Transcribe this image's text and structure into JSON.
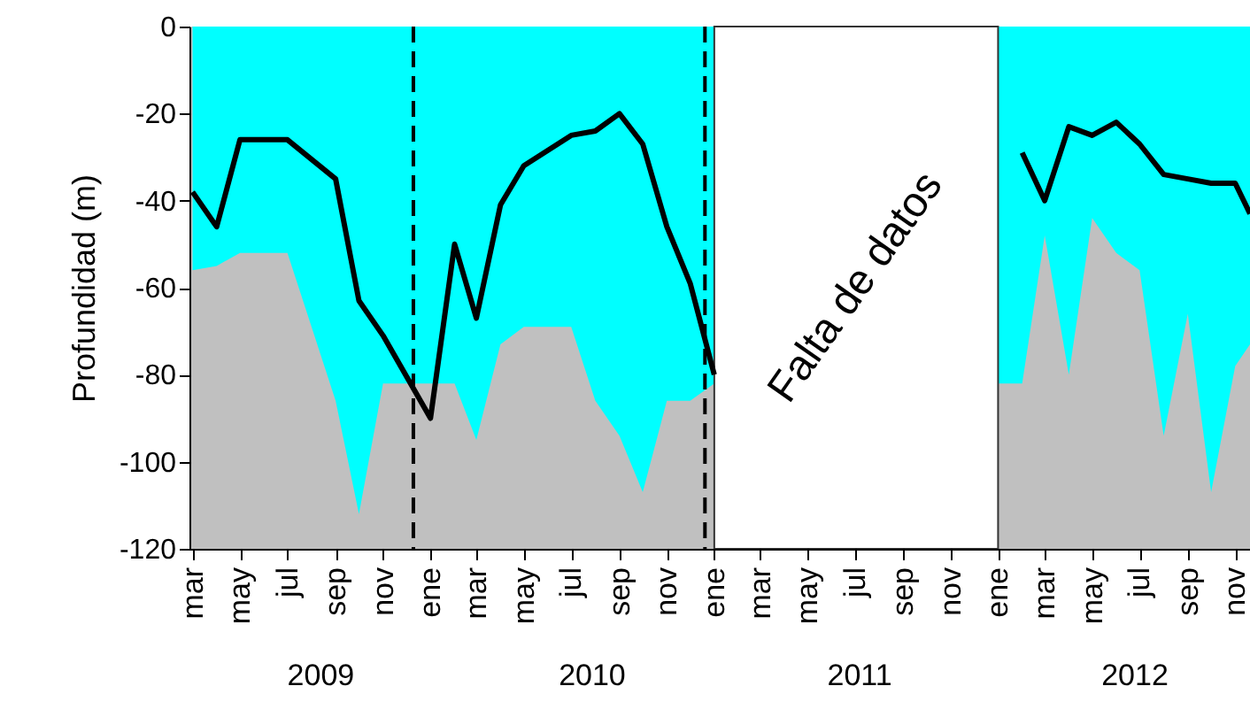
{
  "chart_data": {
    "type": "area",
    "ylabel": "Profundidad (m)",
    "xlim": [
      "2009-02-25",
      "2012-11-20"
    ],
    "ylim": [
      -120,
      0
    ],
    "yticks": [
      -120,
      -100,
      -80,
      -60,
      -40,
      -20,
      0
    ],
    "xticks": [
      {
        "value": "2009-03",
        "label": "mar"
      },
      {
        "value": "2009-05",
        "label": "may"
      },
      {
        "value": "2009-07",
        "label": "jul"
      },
      {
        "value": "2009-09",
        "label": "sep"
      },
      {
        "value": "2009-11",
        "label": "nov"
      },
      {
        "value": "2010-01",
        "label": "ene"
      },
      {
        "value": "2010-03",
        "label": "mar"
      },
      {
        "value": "2010-05",
        "label": "may"
      },
      {
        "value": "2010-07",
        "label": "jul"
      },
      {
        "value": "2010-09",
        "label": "sep"
      },
      {
        "value": "2010-11",
        "label": "nov"
      },
      {
        "value": "2011-01",
        "label": "ene"
      },
      {
        "value": "2011-03",
        "label": "mar"
      },
      {
        "value": "2011-05",
        "label": "may"
      },
      {
        "value": "2011-07",
        "label": "jul"
      },
      {
        "value": "2011-09",
        "label": "sep"
      },
      {
        "value": "2011-11",
        "label": "nov"
      },
      {
        "value": "2012-01",
        "label": "ene"
      },
      {
        "value": "2012-03",
        "label": "mar"
      },
      {
        "value": "2012-05",
        "label": "may"
      },
      {
        "value": "2012-07",
        "label": "jul"
      },
      {
        "value": "2012-09",
        "label": "sep"
      },
      {
        "value": "2012-11",
        "label": "nov"
      }
    ],
    "x2lim": [
      "2009-02-25",
      "2012-11-20"
    ],
    "x2ticks": [
      {
        "value": "2009-08-13",
        "label": "2009"
      },
      {
        "value": "2010-07-28",
        "label": "2010"
      },
      {
        "value": "2011-07-07",
        "label": "2011"
      },
      {
        "value": "2012-06-25",
        "label": "2012"
      }
    ],
    "series": [
      {
        "type": "area",
        "color": "#00ffff",
        "x": [
          "2009-03",
          "2009-04",
          "2009-05",
          "2009-07",
          "2009-09",
          "2009-10",
          "2009-11",
          "2010-02",
          "2010-03",
          "2010-04",
          "2010-05",
          "2010-07",
          "2010-08",
          "2010-09",
          "2010-10",
          "2010-11",
          "2010-12",
          "2011-01"
        ],
        "values": [
          -56,
          -55,
          -52,
          -52,
          -86,
          -112,
          -82,
          -82,
          -95,
          -73,
          -69,
          -69,
          -86,
          -94,
          -107,
          -86,
          -86,
          -82
        ]
      },
      {
        "type": "area",
        "color": "#00ffff",
        "x": [
          "2012-01",
          "2012-02",
          "2012-03",
          "2012-04",
          "2012-05",
          "2012-06",
          "2012-07",
          "2012-08",
          "2012-09",
          "2012-10",
          "2012-11",
          "2012-11-20"
        ],
        "values": [
          -82,
          -82,
          -48,
          -80,
          -44,
          -52,
          -56,
          -94,
          -66,
          -107,
          -78,
          -73
        ]
      },
      {
        "type": "line",
        "color": "#000000",
        "x": [
          "2009-03",
          "2009-04",
          "2009-05",
          "2009-07",
          "2009-09",
          "2009-10",
          "2009-11",
          "2010-01",
          "2010-02",
          "2010-03",
          "2010-04",
          "2010-05",
          "2010-07",
          "2010-08",
          "2010-09",
          "2010-10",
          "2010-11",
          "2010-12",
          "2011-01",
          "2011-06",
          "2012-02",
          "2012-03",
          "2012-04",
          "2012-05",
          "2012-06",
          "2012-07",
          "2012-08",
          "2012-09",
          "2012-10",
          "2012-11",
          "2012-11-20"
        ],
        "values": [
          -38,
          -46,
          -26,
          -26,
          -35,
          -63,
          -71,
          -90,
          -50,
          -67,
          -41,
          -32,
          -25,
          -24,
          -20,
          -27,
          -46,
          -59,
          -80,
          null,
          -29,
          -40,
          -23,
          -25,
          -22,
          -27,
          -34,
          -35,
          -36,
          -36,
          -43
        ]
      }
    ],
    "bands": [
      {
        "axis": "y",
        "from": -120,
        "to": 0,
        "color": "#c0c0c0"
      },
      {
        "axis": "x",
        "from": "2011-01",
        "to": "2012-01",
        "label": "Falta de datos",
        "color": "#ffffff"
      }
    ],
    "ref_lines": [
      {
        "axis": "x",
        "value": "2009-12-10",
        "line_style": "dashed"
      },
      {
        "axis": "x",
        "value": "2010-12-20",
        "line_style": "dashed"
      }
    ],
    "grid": false
  }
}
